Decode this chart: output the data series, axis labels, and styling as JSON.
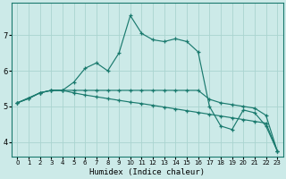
{
  "xlabel": "Humidex (Indice chaleur)",
  "bg_color": "#cceae8",
  "grid_color": "#aad4d0",
  "line_color": "#1a7a6e",
  "xlim": [
    -0.5,
    23.5
  ],
  "ylim": [
    3.6,
    7.9
  ],
  "xticks": [
    0,
    1,
    2,
    3,
    4,
    5,
    6,
    7,
    8,
    9,
    10,
    11,
    12,
    13,
    14,
    15,
    16,
    17,
    18,
    19,
    20,
    21,
    22,
    23
  ],
  "yticks": [
    4,
    5,
    6,
    7
  ],
  "line1_x": [
    0,
    1,
    2,
    3,
    4,
    5,
    6,
    7,
    8,
    9,
    10,
    11,
    12,
    13,
    14,
    15,
    16,
    17,
    18,
    19,
    20,
    21,
    22,
    23
  ],
  "line1_y": [
    5.1,
    5.22,
    5.38,
    5.45,
    5.45,
    5.38,
    5.32,
    5.27,
    5.22,
    5.17,
    5.12,
    5.08,
    5.03,
    4.98,
    4.93,
    4.88,
    4.83,
    4.78,
    4.73,
    4.68,
    4.63,
    4.58,
    4.53,
    3.75
  ],
  "line2_x": [
    0,
    1,
    2,
    3,
    4,
    5,
    6,
    7,
    8,
    9,
    10,
    11,
    12,
    13,
    14,
    15,
    16,
    17,
    18,
    19,
    20,
    21,
    22,
    23
  ],
  "line2_y": [
    5.1,
    5.22,
    5.38,
    5.45,
    5.45,
    5.45,
    5.45,
    5.45,
    5.45,
    5.45,
    5.45,
    5.45,
    5.45,
    5.45,
    5.45,
    5.45,
    5.45,
    5.2,
    5.1,
    5.05,
    5.0,
    4.95,
    4.75,
    3.75
  ],
  "line3_x": [
    0,
    2,
    3,
    4,
    5,
    6,
    7,
    8,
    9,
    10,
    11,
    12,
    13,
    14,
    15,
    16,
    17,
    18,
    19,
    20,
    21,
    22,
    23
  ],
  "line3_y": [
    5.1,
    5.38,
    5.45,
    5.45,
    5.68,
    6.07,
    6.22,
    6.0,
    6.5,
    7.55,
    7.05,
    6.87,
    6.82,
    6.9,
    6.82,
    6.53,
    5.0,
    4.45,
    4.35,
    4.9,
    4.82,
    4.45,
    3.75
  ]
}
